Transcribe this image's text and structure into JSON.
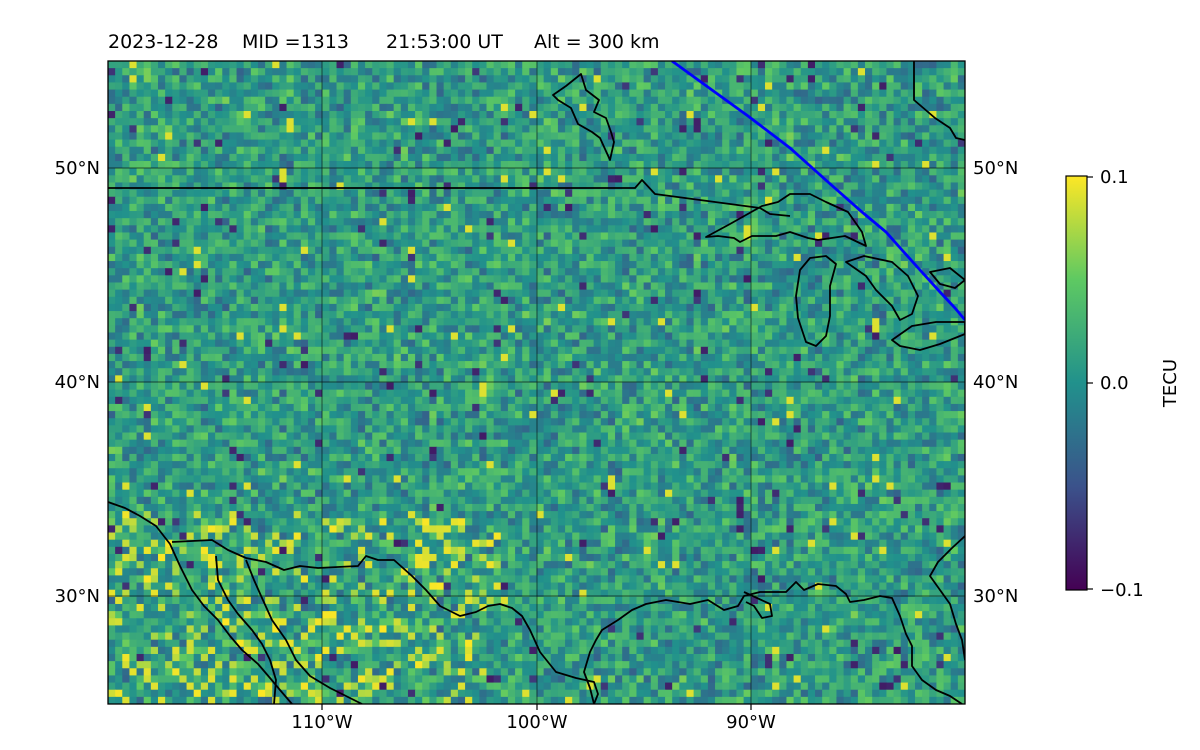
{
  "header": {
    "date": "2023-12-28",
    "mid": "MID =1313",
    "time": "21:53:00  UT",
    "altitude": "Alt = 300 km"
  },
  "map": {
    "lon_range": [
      -120,
      -80
    ],
    "lat_range": [
      25,
      55
    ],
    "lon_ticks": [
      {
        "value": -110,
        "label": "110°W"
      },
      {
        "value": -100,
        "label": "100°W"
      },
      {
        "value": -90,
        "label": "90°W"
      }
    ],
    "lat_ticks": [
      {
        "value": 50,
        "label": "50°N"
      },
      {
        "value": 40,
        "label": "40°N"
      },
      {
        "value": 30,
        "label": "30°N"
      }
    ]
  },
  "colorbar": {
    "label": "TECU",
    "min": -0.1,
    "max": 0.1,
    "ticks": [
      {
        "value": 0.1,
        "label": "0.1"
      },
      {
        "value": 0.0,
        "label": "0.0"
      },
      {
        "value": -0.1,
        "label": "−0.1"
      }
    ],
    "colormap": "viridis",
    "colors": [
      "#440154",
      "#3b528b",
      "#21918c",
      "#5ec962",
      "#fde725"
    ]
  },
  "colors": {
    "terminator_line": "#0000ff",
    "coastlines": "#000000",
    "gridlines": "#000000"
  }
}
